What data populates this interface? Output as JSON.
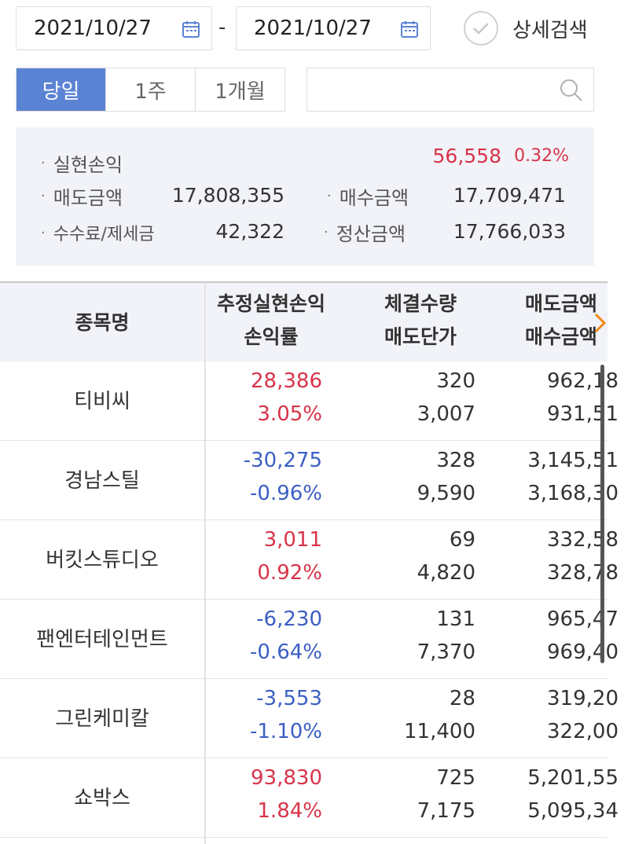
{
  "filters": {
    "start_date": "2021/10/27",
    "end_date": "2021/10/27",
    "date_separator": "-",
    "detail_search_label": "상세검색",
    "periods": [
      "당일",
      "1주",
      "1개월"
    ],
    "active_period": "당일",
    "search_placeholder": ""
  },
  "summary": {
    "realized_pl_label": "실현손익",
    "realized_pl_value": "56,558",
    "realized_pl_rate": "0.32%",
    "sell_amount_label": "매도금액",
    "sell_amount_value": "17,808,355",
    "buy_amount_label": "매수금액",
    "buy_amount_value": "17,709,471",
    "fee_tax_label": "수수료/제세금",
    "fee_tax_value": "42,322",
    "settlement_label": "정산금액",
    "settlement_value": "17,766,033"
  },
  "table": {
    "headers": {
      "name": "종목명",
      "pl_top": "추정실현손익",
      "pl_bottom": "손익률",
      "qty_top": "체결수량",
      "qty_bottom": "매도단가",
      "amt_top": "매도금액",
      "amt_bottom": "매수금액"
    },
    "rows": [
      {
        "name": "티비씨",
        "pl": "28,386",
        "rate": "3.05%",
        "qty": "320",
        "price": "3,007",
        "sell": "962,18",
        "buy": "931,51",
        "sign": "pos"
      },
      {
        "name": "경남스틸",
        "pl": "-30,275",
        "rate": "-0.96%",
        "qty": "328",
        "price": "9,590",
        "sell": "3,145,51",
        "buy": "3,168,30",
        "sign": "neg"
      },
      {
        "name": "버킷스튜디오",
        "pl": "3,011",
        "rate": "0.92%",
        "qty": "69",
        "price": "4,820",
        "sell": "332,58",
        "buy": "328,78",
        "sign": "pos"
      },
      {
        "name": "팬엔터테인먼트",
        "pl": "-6,230",
        "rate": "-0.64%",
        "qty": "131",
        "price": "7,370",
        "sell": "965,47",
        "buy": "969,40",
        "sign": "neg"
      },
      {
        "name": "그린케미칼",
        "pl": "-3,553",
        "rate": "-1.10%",
        "qty": "28",
        "price": "11,400",
        "sell": "319,20",
        "buy": "322,00",
        "sign": "neg"
      },
      {
        "name": "쇼박스",
        "pl": "93,830",
        "rate": "1.84%",
        "qty": "725",
        "price": "7,175",
        "sell": "5,201,55",
        "buy": "5,095,34",
        "sign": "pos"
      }
    ]
  },
  "colors": {
    "accent": "#5b83d4",
    "positive": "#d8334a",
    "negative": "#3b5fc4",
    "summary_bg": "#f1f3f8"
  },
  "icons": {
    "calendar": "calendar-icon",
    "check": "check-circle-icon",
    "search": "search-icon",
    "scroll_right": "chevron-right-icon"
  }
}
